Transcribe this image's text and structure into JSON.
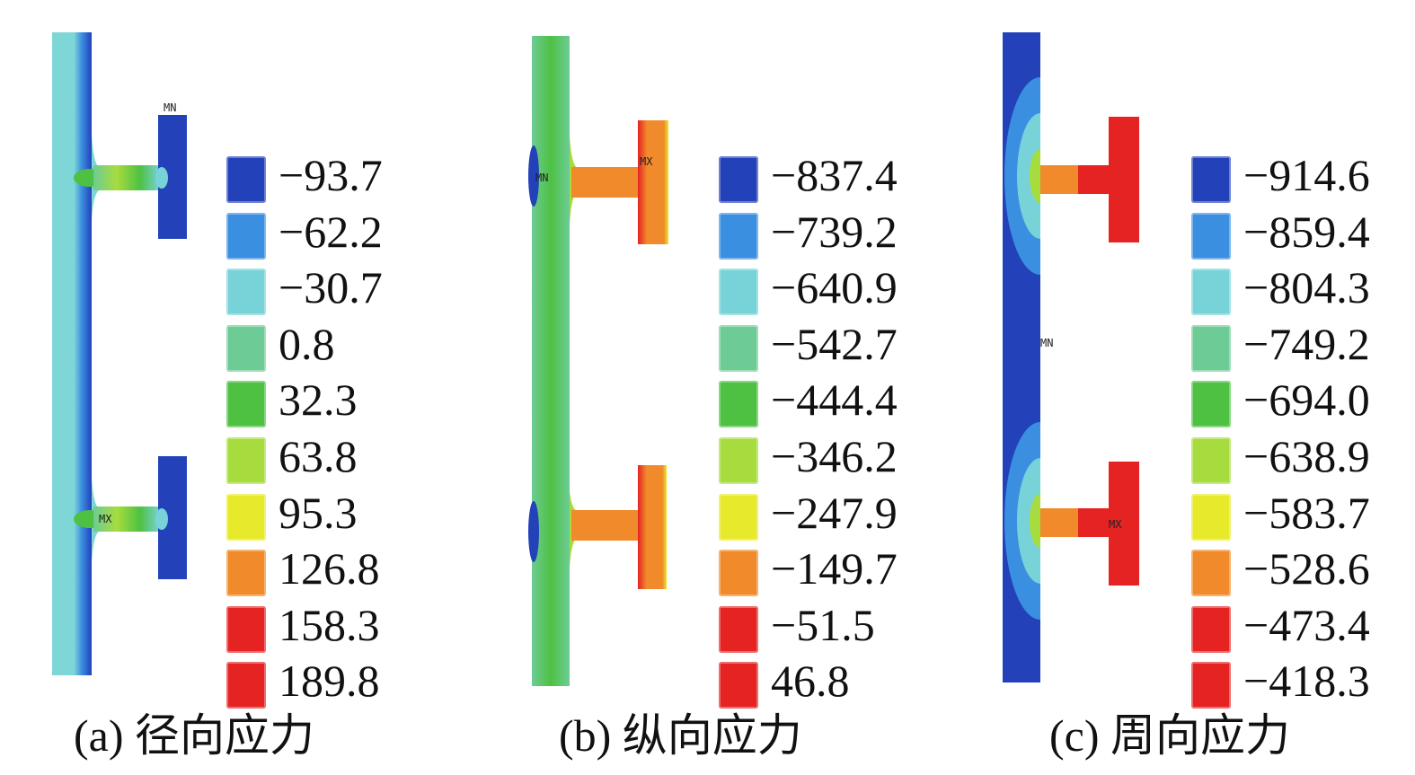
{
  "colors": {
    "band_1": "#2341b8",
    "band_2": "#3a8fe0",
    "band_3": "#78d3d8",
    "band_4": "#6dcc96",
    "band_5": "#4ec143",
    "band_6": "#a7dc3e",
    "band_7": "#e6ea2b",
    "band_8": "#f08a2a",
    "band_9": "#e52323"
  },
  "panels": [
    {
      "caption": "(a) 径向应力",
      "legend": [
        "−93.7",
        "−62.2",
        "−30.7",
        "0.8",
        "32.3",
        "63.8",
        "95.3",
        "126.8",
        "158.3",
        "189.8"
      ],
      "markers": {
        "upper": "MN",
        "lower": "MX"
      }
    },
    {
      "caption": "(b) 纵向应力",
      "legend": [
        "−837.4",
        "−739.2",
        "−640.9",
        "−542.7",
        "−444.4",
        "−346.2",
        "−247.9",
        "−149.7",
        "−51.5",
        "46.8"
      ],
      "markers": {
        "left": "MN",
        "upper": "MX"
      }
    },
    {
      "caption": "(c) 周向应力",
      "legend": [
        "−914.6",
        "−859.4",
        "−804.3",
        "−749.2",
        "−694.0",
        "−638.9",
        "−583.7",
        "−528.6",
        "−473.4",
        "−418.3"
      ],
      "markers": {
        "mid": "MN",
        "lower": "MX"
      }
    }
  ]
}
